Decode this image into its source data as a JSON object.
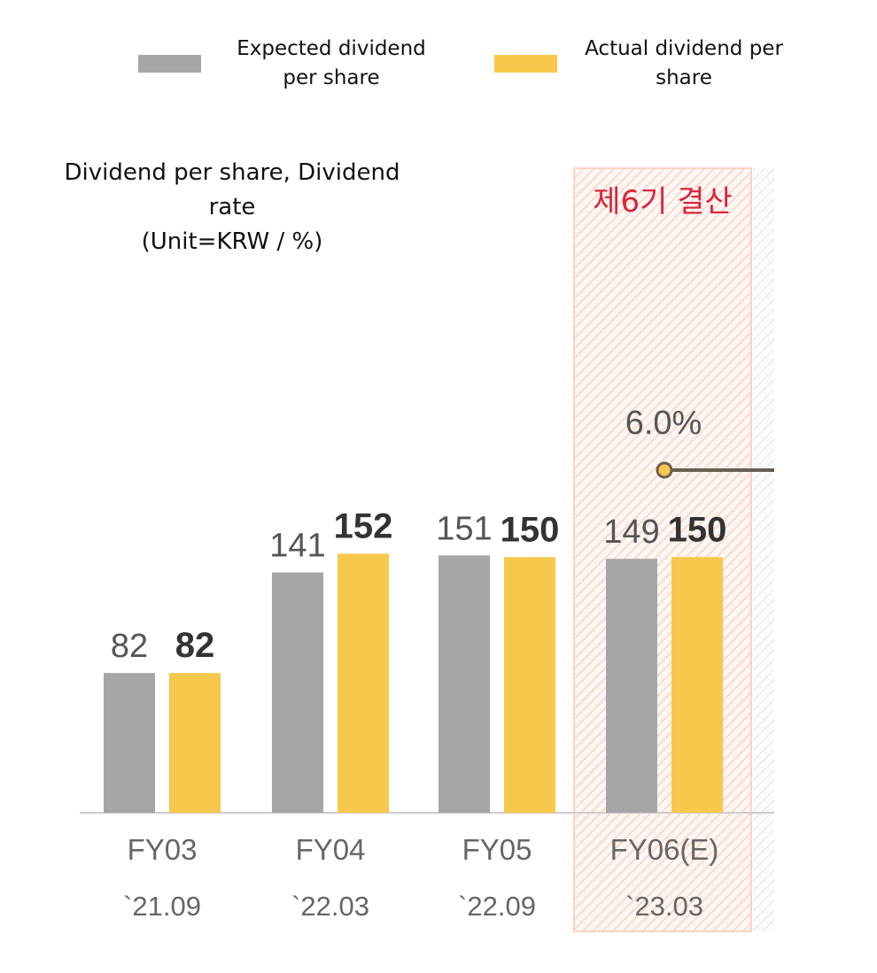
{
  "chart_data": {
    "type": "bar",
    "title": "Dividend per share, Dividend rate",
    "unit": "(Unit=KRW / %)",
    "categories": [
      "FY03",
      "FY04",
      "FY05",
      "FY06(E)"
    ],
    "dates": [
      "`21.09",
      "`22.03",
      "`22.09",
      "`23.03"
    ],
    "series": [
      {
        "name": "Expected dividend per share",
        "values": [
          82,
          141,
          151,
          149
        ],
        "color": "#a6a6a6"
      },
      {
        "name": "Actual dividend per share",
        "values": [
          82,
          152,
          150,
          150
        ],
        "color": "#f7c84b"
      }
    ],
    "dividend_rate": {
      "category": "FY06(E)",
      "label": "6.0%",
      "color": "#6b5e52",
      "marker_color": "#f7c84b"
    },
    "highlight": {
      "category": "FY06(E)",
      "label": "제6기 결산",
      "color": "#f6a98c"
    },
    "ylim": [
      0,
      165
    ],
    "legend": [
      {
        "lines": [
          "Expected dividend",
          "per share"
        ],
        "color": "#a6a6a6"
      },
      {
        "lines": [
          "Actual dividend per",
          "share"
        ],
        "color": "#f7c84b"
      }
    ]
  }
}
